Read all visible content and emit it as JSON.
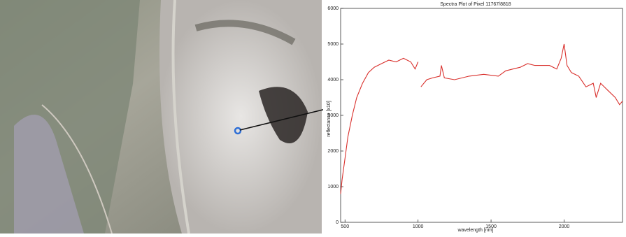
{
  "chart_data": {
    "type": "line",
    "title": "Spectra Plot of Pixel 11767/8818",
    "x_label": "wavelength [nm]",
    "y_label": "reflectance [x10]",
    "x": [
      470,
      480,
      500,
      520,
      550,
      580,
      620,
      660,
      700,
      750,
      800,
      850,
      900,
      950,
      980,
      1000,
      1010,
      1020,
      1060,
      1100,
      1150,
      1160,
      1180,
      1250,
      1350,
      1450,
      1550,
      1600,
      1650,
      1700,
      1750,
      1800,
      1850,
      1900,
      1950,
      1980,
      2000,
      2020,
      2050,
      2100,
      2150,
      2200,
      2220,
      2250,
      2300,
      2350,
      2380,
      2400
    ],
    "series": [
      {
        "color": "#d9302c",
        "values": [
          800,
          1200,
          1800,
          2400,
          3000,
          3500,
          3900,
          4200,
          4350,
          4450,
          4550,
          4500,
          4600,
          4500,
          4300,
          4500,
          null,
          3800,
          4000,
          4050,
          4100,
          4400,
          4050,
          4000,
          4100,
          4150,
          4100,
          4250,
          4300,
          4350,
          4450,
          4400,
          4400,
          4400,
          4300,
          4600,
          5000,
          4400,
          4200,
          4100,
          3800,
          3900,
          3500,
          3900,
          3700,
          3500,
          3300,
          3400
        ]
      }
    ],
    "xlim": [
      470,
      2400
    ],
    "xticks": [
      500,
      1000,
      1500,
      2000
    ],
    "ylim": [
      0,
      6000
    ],
    "yticks": [
      0,
      1000,
      2000,
      3000,
      4000,
      5000,
      6000
    ]
  }
}
